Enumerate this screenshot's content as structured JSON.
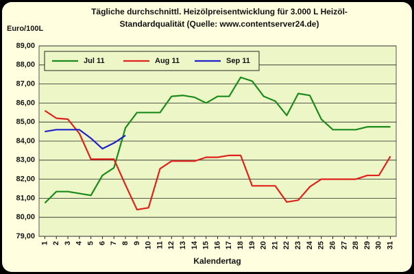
{
  "chart_data": {
    "type": "line",
    "title": [
      "Tägliche durchschnittl. Heizölpreisentwicklung für 3.000 L Heizöl-",
      "Standardqualität (Quelle: www.contentserver24.de)"
    ],
    "ylabel": "Euro/100L",
    "xlabel": "Kalendertag",
    "categories": [
      "1",
      "2",
      "3",
      "4",
      "5",
      "6",
      "7",
      "8",
      "9",
      "10",
      "11",
      "12",
      "13",
      "14",
      "15",
      "16",
      "17",
      "18",
      "19",
      "20",
      "21",
      "22",
      "23",
      "24",
      "25",
      "26",
      "27",
      "28",
      "29",
      "30",
      "31"
    ],
    "series": [
      {
        "name": "Jul 11",
        "color": "#1a8a1a",
        "values": [
          80.75,
          81.35,
          81.35,
          81.25,
          81.15,
          82.2,
          82.6,
          84.7,
          85.5,
          85.5,
          85.5,
          86.35,
          86.4,
          86.3,
          86.0,
          86.35,
          86.35,
          87.35,
          87.15,
          86.35,
          86.1,
          85.35,
          86.5,
          86.4,
          85.15,
          84.6,
          84.6,
          84.6,
          84.75,
          84.75,
          84.75
        ]
      },
      {
        "name": "Aug 11",
        "color": "#e0201a",
        "values": [
          85.6,
          85.2,
          85.15,
          84.4,
          83.05,
          83.05,
          83.05,
          81.7,
          80.4,
          80.5,
          82.55,
          82.95,
          82.95,
          82.95,
          83.15,
          83.15,
          83.25,
          83.25,
          81.65,
          81.65,
          81.65,
          80.8,
          80.9,
          81.6,
          82.0,
          82.0,
          82.0,
          82.0,
          82.2,
          82.2,
          83.2
        ]
      },
      {
        "name": "Sep 11",
        "color": "#2020c8",
        "values": [
          84.5,
          84.6,
          84.6,
          84.6,
          84.15,
          83.6,
          83.9,
          84.3,
          null,
          null,
          null,
          null,
          null,
          null,
          null,
          null,
          null,
          null,
          null,
          null,
          null,
          null,
          null,
          null,
          null,
          null,
          null,
          null,
          null,
          null,
          null
        ]
      }
    ],
    "ylim": [
      79,
      89
    ],
    "yticks": [
      {
        "value": 79,
        "label": "79,00"
      },
      {
        "value": 80,
        "label": "80,00"
      },
      {
        "value": 81,
        "label": "81,00"
      },
      {
        "value": 82,
        "label": "82,00"
      },
      {
        "value": 83,
        "label": "83,00"
      },
      {
        "value": 84,
        "label": "84,00"
      },
      {
        "value": 85,
        "label": "85,00"
      },
      {
        "value": 86,
        "label": "86,00"
      },
      {
        "value": 87,
        "label": "87,00"
      },
      {
        "value": 88,
        "label": "88,00"
      },
      {
        "value": 89,
        "label": "89,00"
      }
    ],
    "grid": true
  }
}
